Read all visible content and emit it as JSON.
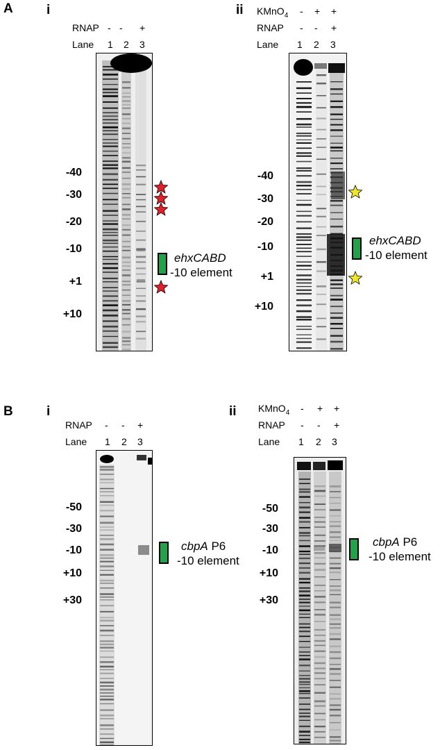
{
  "figure": {
    "panelA": {
      "letter": "A",
      "sub_i": {
        "label": "i",
        "rows": [
          {
            "name": "RNAP",
            "values": [
              "-",
              "-",
              "+"
            ]
          },
          {
            "name": "Lane",
            "values": [
              "1",
              "2",
              "3"
            ]
          }
        ],
        "markers": [
          "-40",
          "-30",
          "-20",
          "-10",
          "+1",
          "+10"
        ],
        "element_gene": "ehxCABD",
        "element_text": "-10 element",
        "star_color": "#e0202a"
      },
      "sub_ii": {
        "label": "ii",
        "reagent_name": "KMnO",
        "reagent_sub": "4",
        "reagent_values": [
          "-",
          "+",
          "+"
        ],
        "rows": [
          {
            "name": "RNAP",
            "values": [
              "-",
              "-",
              "+"
            ]
          },
          {
            "name": "Lane",
            "values": [
              "1",
              "2",
              "3"
            ]
          }
        ],
        "markers": [
          "-40",
          "-30",
          "-20",
          "-10",
          "+1",
          "+10"
        ],
        "element_gene": "ehxCABD",
        "element_text": "-10 element",
        "star_color": "#f2e62a"
      }
    },
    "panelB": {
      "letter": "B",
      "sub_i": {
        "label": "i",
        "rows": [
          {
            "name": "RNAP",
            "values": [
              "-",
              "-",
              "+"
            ]
          },
          {
            "name": "Lane",
            "values": [
              "1",
              "2",
              "3"
            ]
          }
        ],
        "markers": [
          "-50",
          "-30",
          "-10",
          "+10",
          "+30"
        ],
        "element_gene": "cbpA",
        "element_gene_suffix": " P6",
        "element_text": "-10 element"
      },
      "sub_ii": {
        "label": "ii",
        "reagent_name": "KMnO",
        "reagent_sub": "4",
        "reagent_values": [
          "-",
          "+",
          "+"
        ],
        "rows": [
          {
            "name": "RNAP",
            "values": [
              "-",
              "-",
              "+"
            ]
          },
          {
            "name": "Lane",
            "values": [
              "1",
              "2",
              "3"
            ]
          }
        ],
        "markers": [
          "-50",
          "-30",
          "-10",
          "+10",
          "+30"
        ],
        "element_gene": "cbpA",
        "element_gene_suffix": " P6",
        "element_text": "-10 element"
      }
    },
    "colors": {
      "element_box": "#21a349"
    }
  }
}
